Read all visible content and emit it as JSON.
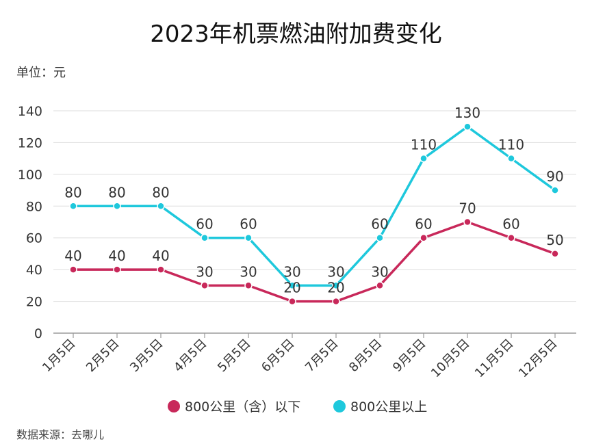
{
  "title": "2023年机票燃油附加费变化",
  "unit_label": "单位：元",
  "source_label": "数据来源：去哪儿",
  "chart_data": {
    "type": "line",
    "title": "2023年机票燃油附加费变化",
    "x": [
      "1月5日",
      "2月5日",
      "3月5日",
      "4月5日",
      "5月5日",
      "6月5日",
      "7月5日",
      "8月5日",
      "9月5日",
      "10月5日",
      "11月5日",
      "12月5日"
    ],
    "series": [
      {
        "name": "800公里（含）以下",
        "color": "#c8285a",
        "values": [
          40,
          40,
          40,
          30,
          30,
          20,
          20,
          30,
          60,
          70,
          60,
          50
        ]
      },
      {
        "name": "800公里以上",
        "color": "#1ec8dc",
        "values": [
          80,
          80,
          80,
          60,
          60,
          30,
          30,
          60,
          110,
          130,
          110,
          90
        ]
      }
    ],
    "ylim": [
      0,
      140
    ],
    "yticks": [
      0,
      20,
      40,
      60,
      80,
      100,
      120,
      140
    ],
    "grid": true,
    "legend_position": "bottom"
  }
}
